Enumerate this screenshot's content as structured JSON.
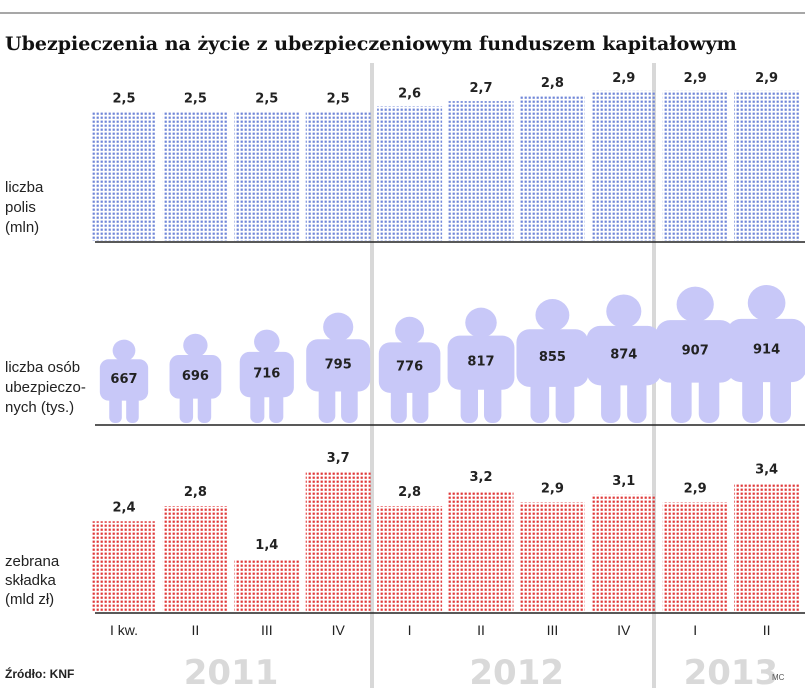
{
  "title": "Ubezpieczenia na życie z ubezpieczeniowym funduszem kapitałowym",
  "source": "Źródło: KNF",
  "credit": "MC",
  "colors": {
    "polis": "#6f86d8",
    "osoby": "#c8c8f8",
    "skladka": "#e03838",
    "divider": "#d8d8d8",
    "axis": "#222222",
    "year": "#d9d9d9"
  },
  "chart_data": {
    "type": "bar",
    "title": "Ubezpieczenia na życie z ubezpieczeniowym funduszem kapitałowym",
    "categories": [
      "I kw.",
      "II",
      "III",
      "IV",
      "I",
      "II",
      "III",
      "IV",
      "I",
      "II"
    ],
    "years": [
      {
        "label": "2011",
        "quarters": 4
      },
      {
        "label": "2012",
        "quarters": 4
      },
      {
        "label": "2013",
        "quarters": 2
      }
    ],
    "series": [
      {
        "name": "liczba polis (mln)",
        "label_lines": [
          "liczba",
          "polis",
          "(mln)"
        ],
        "values": [
          2.5,
          2.5,
          2.5,
          2.5,
          2.6,
          2.7,
          2.8,
          2.9,
          2.9,
          2.9
        ],
        "labels": [
          "2,5",
          "2,5",
          "2,5",
          "2,5",
          "2,6",
          "2,7",
          "2,8",
          "2,9",
          "2,9",
          "2,9"
        ]
      },
      {
        "name": "liczba osób ubezpieczonych (tys.)",
        "label_lines": [
          "liczba osób",
          "ubezpieczo-",
          "nych (tys.)"
        ],
        "values": [
          667,
          696,
          716,
          795,
          776,
          817,
          855,
          874,
          907,
          914
        ],
        "labels": [
          "667",
          "696",
          "716",
          "795",
          "776",
          "817",
          "855",
          "874",
          "907",
          "914"
        ]
      },
      {
        "name": "zebrana składka (mld zł)",
        "label_lines": [
          "zebrana",
          "składka",
          "(mld zł)"
        ],
        "values": [
          2.4,
          2.8,
          1.4,
          3.7,
          2.8,
          3.2,
          2.9,
          3.1,
          2.9,
          3.4
        ],
        "labels": [
          "2,4",
          "2,8",
          "1,4",
          "3,7",
          "2,8",
          "3,2",
          "2,9",
          "3,1",
          "2,9",
          "3,4"
        ]
      }
    ]
  }
}
